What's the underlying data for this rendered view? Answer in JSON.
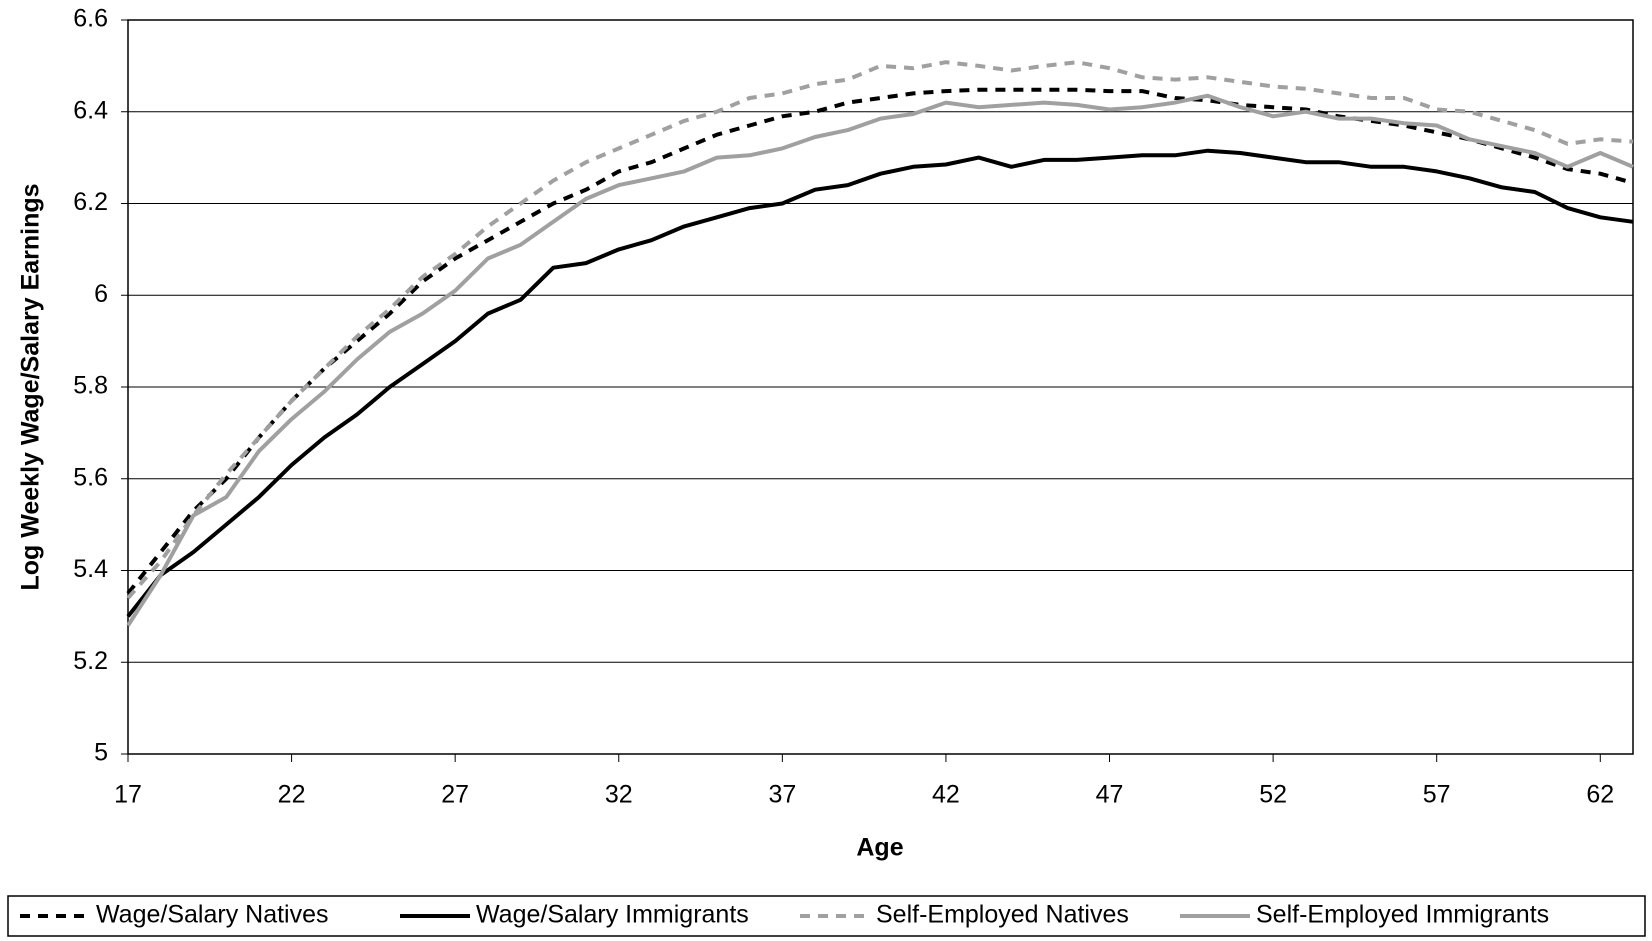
{
  "chart_data": {
    "type": "line",
    "x_label": "Age",
    "y_label": "Log Weekly Wage/Salary Earnings",
    "x": [
      17,
      18,
      19,
      20,
      21,
      22,
      23,
      24,
      25,
      26,
      27,
      28,
      29,
      30,
      31,
      32,
      33,
      34,
      35,
      36,
      37,
      38,
      39,
      40,
      41,
      42,
      43,
      44,
      45,
      46,
      47,
      48,
      49,
      50,
      51,
      52,
      53,
      54,
      55,
      56,
      57,
      58,
      59,
      60,
      61,
      62,
      63
    ],
    "series": [
      {
        "name": "Wage/Salary Natives",
        "color": "#000000",
        "line_style": "dashed",
        "values": [
          5.35,
          5.44,
          5.53,
          5.6,
          5.69,
          5.77,
          5.84,
          5.9,
          5.96,
          6.03,
          6.08,
          6.12,
          6.16,
          6.2,
          6.23,
          6.27,
          6.29,
          6.32,
          6.35,
          6.37,
          6.39,
          6.4,
          6.42,
          6.43,
          6.44,
          6.445,
          6.448,
          6.448,
          6.448,
          6.448,
          6.445,
          6.445,
          6.43,
          6.425,
          6.415,
          6.41,
          6.405,
          6.39,
          6.38,
          6.37,
          6.355,
          6.34,
          6.32,
          6.3,
          6.275,
          6.265,
          6.245
        ]
      },
      {
        "name": "Wage/Salary Immigrants",
        "color": "#000000",
        "line_style": "solid",
        "values": [
          5.3,
          5.39,
          5.44,
          5.5,
          5.56,
          5.63,
          5.69,
          5.74,
          5.8,
          5.85,
          5.9,
          5.96,
          5.99,
          6.06,
          6.07,
          6.1,
          6.12,
          6.15,
          6.17,
          6.19,
          6.2,
          6.23,
          6.24,
          6.265,
          6.28,
          6.285,
          6.3,
          6.28,
          6.295,
          6.295,
          6.3,
          6.305,
          6.305,
          6.315,
          6.31,
          6.3,
          6.29,
          6.29,
          6.28,
          6.28,
          6.27,
          6.255,
          6.235,
          6.225,
          6.19,
          6.17,
          6.16
        ]
      },
      {
        "name": "Self-Employed Natives",
        "color": "#a0a0a0",
        "line_style": "dashed",
        "values": [
          5.34,
          5.42,
          5.52,
          5.61,
          5.69,
          5.77,
          5.84,
          5.91,
          5.97,
          6.04,
          6.09,
          6.15,
          6.2,
          6.25,
          6.29,
          6.32,
          6.35,
          6.38,
          6.4,
          6.43,
          6.44,
          6.46,
          6.47,
          6.5,
          6.495,
          6.508,
          6.5,
          6.49,
          6.5,
          6.508,
          6.495,
          6.475,
          6.47,
          6.475,
          6.465,
          6.455,
          6.45,
          6.44,
          6.43,
          6.43,
          6.405,
          6.4,
          6.38,
          6.36,
          6.33,
          6.34,
          6.335
        ]
      },
      {
        "name": "Self-Employed Immigrants",
        "color": "#a0a0a0",
        "line_style": "solid",
        "values": [
          5.28,
          5.39,
          5.52,
          5.56,
          5.66,
          5.73,
          5.79,
          5.86,
          5.92,
          5.96,
          6.01,
          6.08,
          6.11,
          6.16,
          6.21,
          6.24,
          6.255,
          6.27,
          6.3,
          6.305,
          6.32,
          6.345,
          6.36,
          6.385,
          6.395,
          6.42,
          6.41,
          6.415,
          6.42,
          6.415,
          6.405,
          6.41,
          6.42,
          6.435,
          6.41,
          6.39,
          6.4,
          6.385,
          6.385,
          6.375,
          6.37,
          6.34,
          6.325,
          6.31,
          6.28,
          6.31,
          6.28
        ]
      }
    ],
    "xlim": [
      17,
      63
    ],
    "xticks": [
      17,
      22,
      27,
      32,
      37,
      42,
      47,
      52,
      57,
      62
    ],
    "ylim": [
      5,
      6.6
    ],
    "yticks": [
      5,
      5.2,
      5.4,
      5.6,
      5.8,
      6,
      6.2,
      6.4,
      6.6
    ],
    "grid": true,
    "legend": "bottom"
  }
}
